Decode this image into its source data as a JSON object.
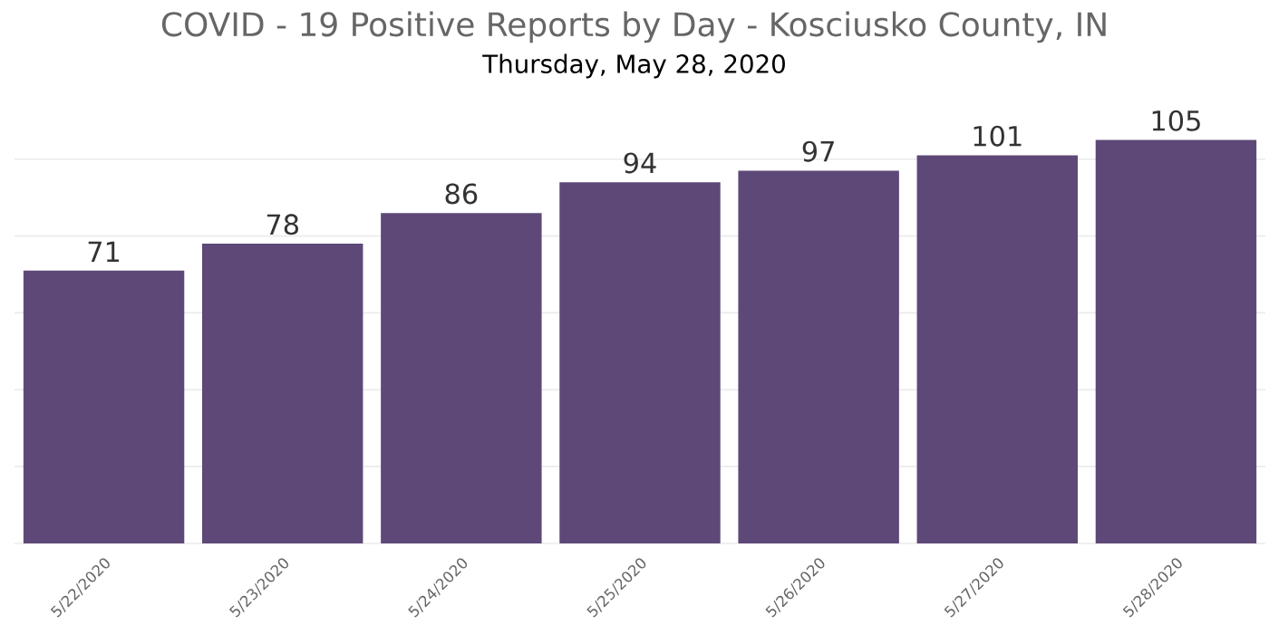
{
  "chart_data": {
    "type": "bar",
    "title": "COVID - 19 Positive Reports by Day - Kosciusko County, IN",
    "subtitle": "Thursday, May 28, 2020",
    "categories": [
      "5/22/2020",
      "5/23/2020",
      "5/24/2020",
      "5/25/2020",
      "5/26/2020",
      "5/27/2020",
      "5/28/2020"
    ],
    "values": [
      71,
      78,
      86,
      94,
      97,
      101,
      105
    ],
    "color": "#5e4878",
    "grid": "y",
    "tick_labels": "x",
    "data_labels": true
  }
}
